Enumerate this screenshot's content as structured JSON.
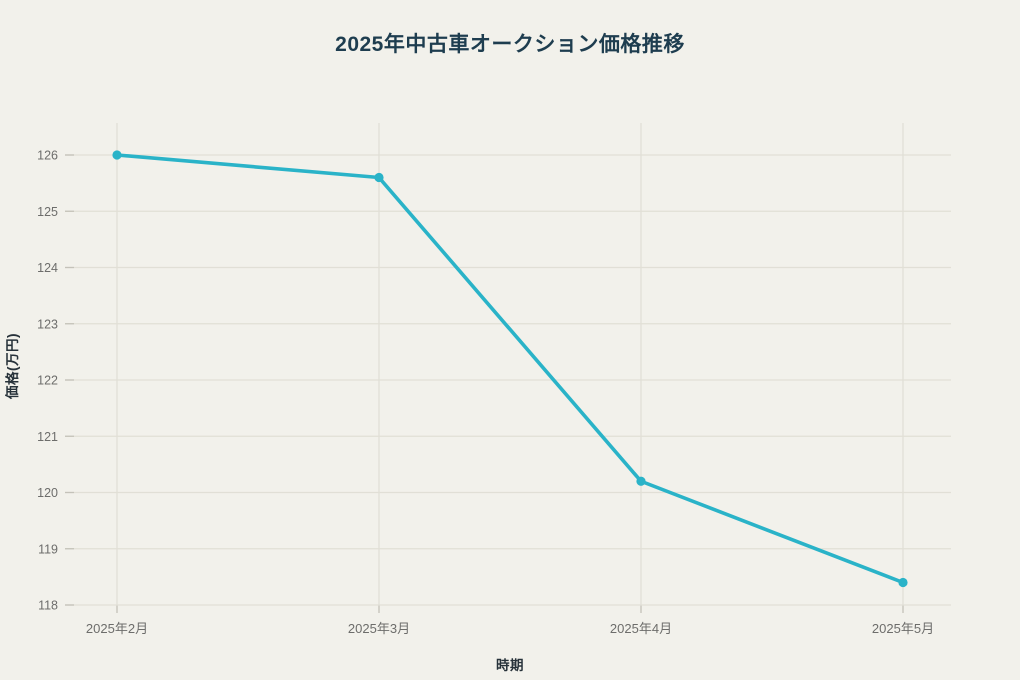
{
  "page": {
    "background_color": "#f2f1eb"
  },
  "chart_data": {
    "type": "line",
    "title": "2025年中古車オークション価格推移",
    "xlabel": "時期",
    "ylabel": "価格(万円)",
    "categories": [
      "2025年2月",
      "2025年3月",
      "2025年4月",
      "2025年5月"
    ],
    "series": [
      {
        "name": "価格",
        "values": [
          126.0,
          125.6,
          120.2,
          118.4
        ]
      }
    ],
    "y_ticks": [
      118,
      119,
      120,
      121,
      122,
      123,
      124,
      125,
      126
    ],
    "ylim": [
      117.8,
      126.6
    ],
    "grid": true,
    "legend": "none",
    "colors": {
      "line": "#2ab3c8",
      "marker": "#2ab3c8",
      "gridline": "#e1dfd6",
      "tick_mark": "#c4c2b9",
      "tick_label": "#6d6d6b",
      "title_text": "#1e3d4f",
      "axis_title_text": "#27323a"
    }
  }
}
